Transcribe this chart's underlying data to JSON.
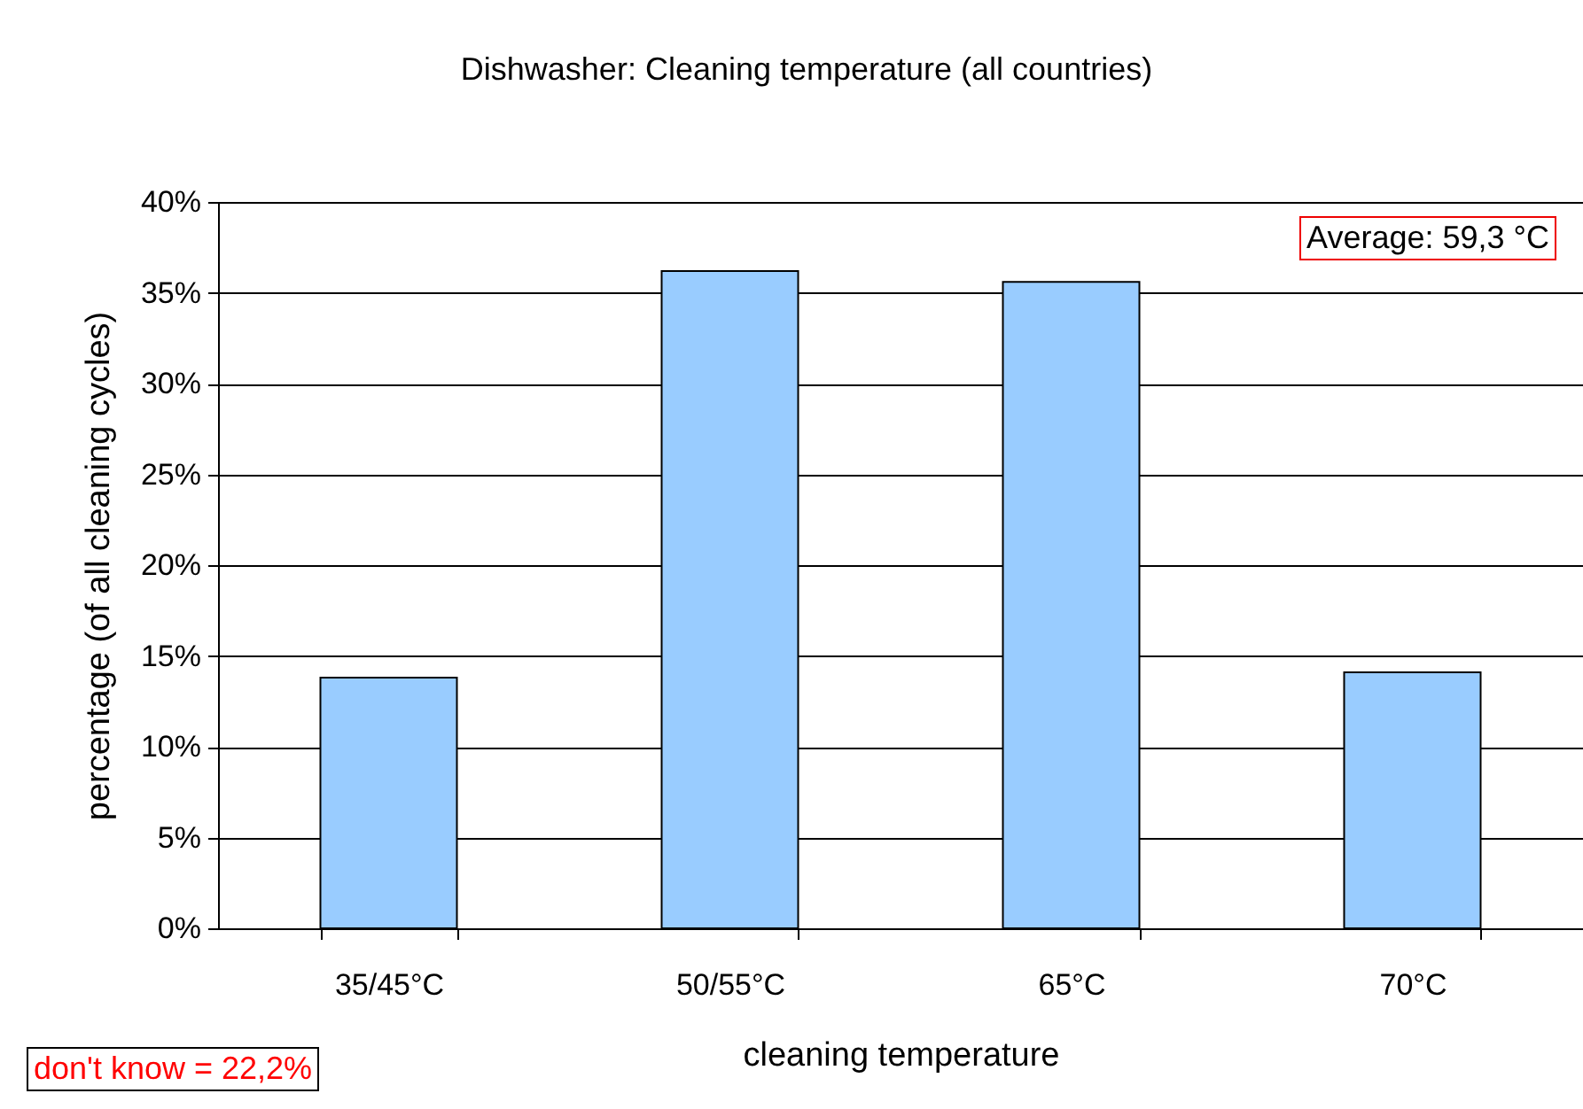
{
  "chart_data": {
    "type": "bar",
    "title": "Dishwasher: Cleaning temperature (all countries)",
    "xlabel": "cleaning temperature",
    "ylabel": "percentage (of all cleaning cycles)",
    "categories": [
      "35/45°C",
      "50/55°C",
      "65°C",
      "70°C"
    ],
    "values": [
      13.8,
      36.2,
      35.6,
      14.1
    ],
    "color": "#99ccff",
    "ylim": [
      0,
      40
    ],
    "yticks": [
      {
        "value": 0,
        "label": "0%"
      },
      {
        "value": 5,
        "label": "5%"
      },
      {
        "value": 10,
        "label": "10%"
      },
      {
        "value": 15,
        "label": "15%"
      },
      {
        "value": 20,
        "label": "20%"
      },
      {
        "value": 25,
        "label": "25%"
      },
      {
        "value": 30,
        "label": "30%"
      },
      {
        "value": 35,
        "label": "35%"
      },
      {
        "value": 40,
        "label": "40%"
      }
    ],
    "grid": "y",
    "annotations": [
      "Average: 59,3 °C",
      "don't know = 22,2%"
    ]
  }
}
